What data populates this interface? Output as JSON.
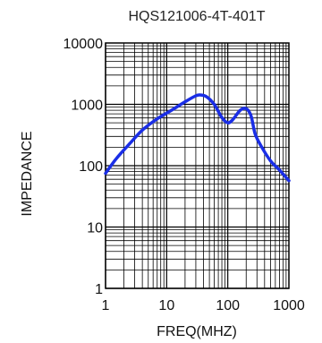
{
  "chart_data": {
    "type": "line",
    "title": "HQS121006-4T-401T",
    "xlabel": "FREQ(MHZ)",
    "ylabel": "IMPEDANCE",
    "xscale": "log",
    "yscale": "log",
    "xlim": [
      1,
      1000
    ],
    "ylim": [
      1,
      10000
    ],
    "grid": true,
    "x_ticks": [
      {
        "value": 1,
        "label": "1"
      },
      {
        "value": 10,
        "label": "10"
      },
      {
        "value": 100,
        "label": "100"
      },
      {
        "value": 1000,
        "label": "1000"
      }
    ],
    "y_ticks": [
      {
        "value": 1,
        "label": "1"
      },
      {
        "value": 10,
        "label": "10"
      },
      {
        "value": 100,
        "label": "100"
      },
      {
        "value": 1000,
        "label": "1000"
      },
      {
        "value": 10000,
        "label": "10000"
      }
    ],
    "series": [
      {
        "x": [
          1,
          1.5,
          2.5,
          4,
          7,
          12,
          20,
          30,
          36,
          45,
          60,
          80,
          100,
          120,
          160,
          200,
          240,
          280,
          350,
          500,
          700,
          1000
        ],
        "y": [
          75,
          130,
          230,
          380,
          580,
          800,
          1100,
          1380,
          1420,
          1330,
          1000,
          610,
          500,
          560,
          800,
          850,
          650,
          330,
          210,
          120,
          85,
          57
        ]
      }
    ]
  },
  "colors": {
    "line": "#1a2ee6",
    "grid": "#000000",
    "background": "#ffffff"
  }
}
